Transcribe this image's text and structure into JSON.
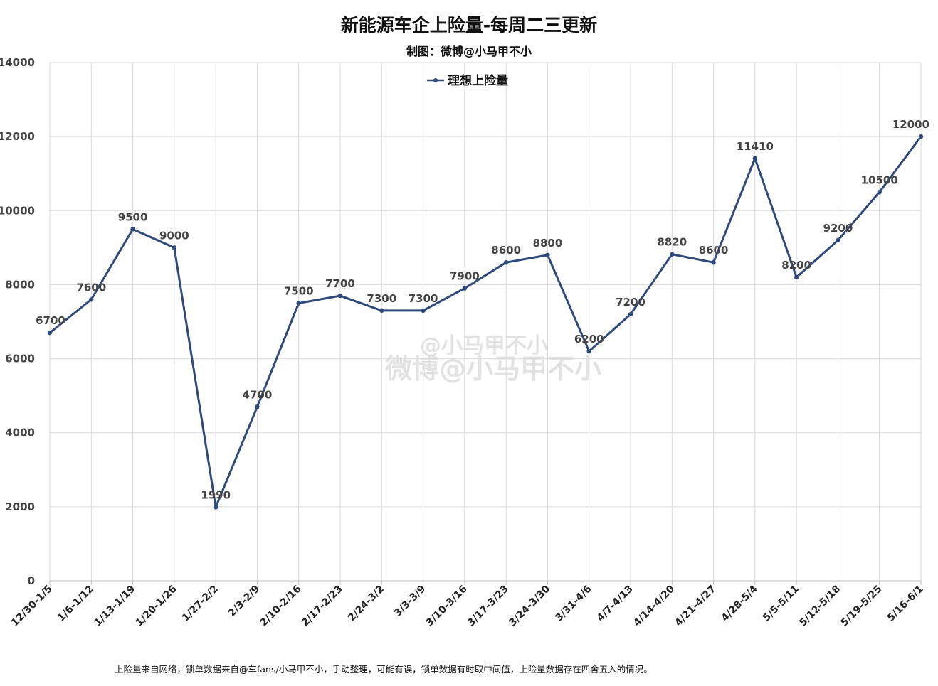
{
  "page": {
    "title": "新能源车企上险量-每周二三更新",
    "subtitle": "制图：微博@小马甲不小",
    "footnote": "上险量来自网络，锁单数据来自@车fans/小马甲不小，手动整理，可能有误，锁单数据有时取中间值，上险量数据存在四舍五入的情况。",
    "watermark_line1": "@小马甲不小",
    "watermark_line2": "微博@小马甲不小"
  },
  "chart_data": {
    "type": "line",
    "title": "新能源车企上险量-每周二三更新",
    "subtitle": "制图：微博@小马甲不小",
    "xlabel": "",
    "ylabel": "",
    "ylim": [
      0,
      14000
    ],
    "yticks": [
      0,
      2000,
      4000,
      6000,
      8000,
      10000,
      12000,
      14000
    ],
    "grid": true,
    "legend": "top-center",
    "categories": [
      "12/30-1/5",
      "1/6-1/12",
      "1/13-1/19",
      "1/20-1/26",
      "1/27-2/2",
      "2/3-2/9",
      "2/10-2/16",
      "2/17-2/23",
      "2/24-3/2",
      "3/3-3/9",
      "3/10-3/16",
      "3/17-3/23",
      "3/24-3/30",
      "3/31-4/6",
      "4/7-4/13",
      "4/14-4/20",
      "4/21-4/27",
      "4/28-5/4",
      "5/5-5/11",
      "5/12-5/18",
      "5/19-5/25",
      "5/16-6/1"
    ],
    "series": [
      {
        "name": "理想上险量",
        "color": "#2e4a7d",
        "values": [
          6700,
          7600,
          9500,
          9000,
          1990,
          4700,
          7500,
          7700,
          7300,
          7300,
          7900,
          8600,
          8800,
          6200,
          7200,
          8820,
          8600,
          11410,
          8200,
          9200,
          10500,
          12000
        ]
      }
    ]
  }
}
